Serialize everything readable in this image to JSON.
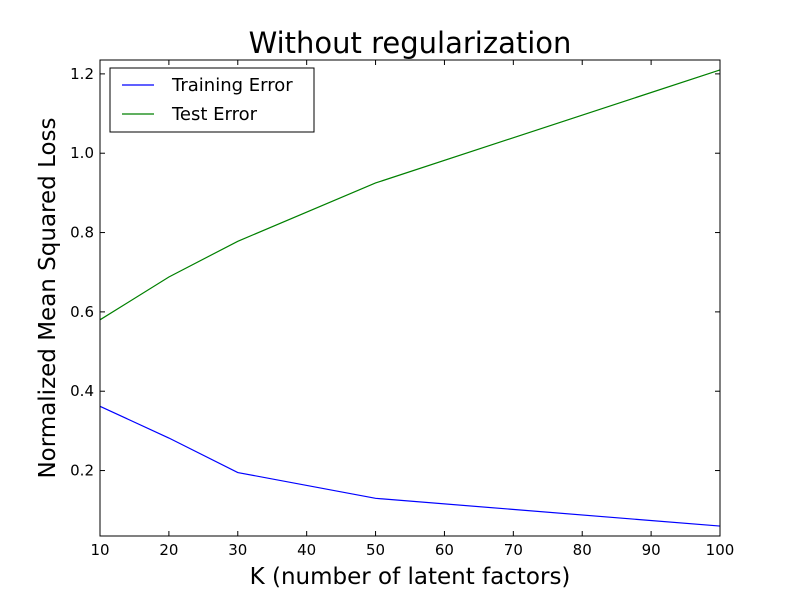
{
  "chart_data": {
    "type": "line",
    "title": "Without regularization",
    "xlabel": "K (number of latent factors)",
    "ylabel": "Normalized Mean Squared Loss",
    "xlim": [
      10,
      100
    ],
    "ylim": [
      0.035,
      1.235
    ],
    "x_ticks": [
      10,
      20,
      30,
      40,
      50,
      60,
      70,
      80,
      90,
      100
    ],
    "x_tick_labels": [
      "10",
      "20",
      "30",
      "40",
      "50",
      "60",
      "70",
      "80",
      "90",
      "100"
    ],
    "y_ticks": [
      0.2,
      0.4,
      0.6,
      0.8,
      1.0,
      1.2
    ],
    "y_tick_labels": [
      "0.2",
      "0.4",
      "0.6",
      "0.8",
      "1.0",
      "1.2"
    ],
    "grid": false,
    "legend_position": "top-left",
    "series": [
      {
        "name": "Training Error",
        "color": "#0000ff",
        "x": [
          10,
          20,
          30,
          50,
          100
        ],
        "y": [
          0.362,
          0.282,
          0.195,
          0.13,
          0.06
        ]
      },
      {
        "name": "Test Error",
        "color": "#008000",
        "x": [
          10,
          20,
          30,
          50,
          100
        ],
        "y": [
          0.58,
          0.688,
          0.778,
          0.925,
          1.21
        ]
      }
    ]
  }
}
